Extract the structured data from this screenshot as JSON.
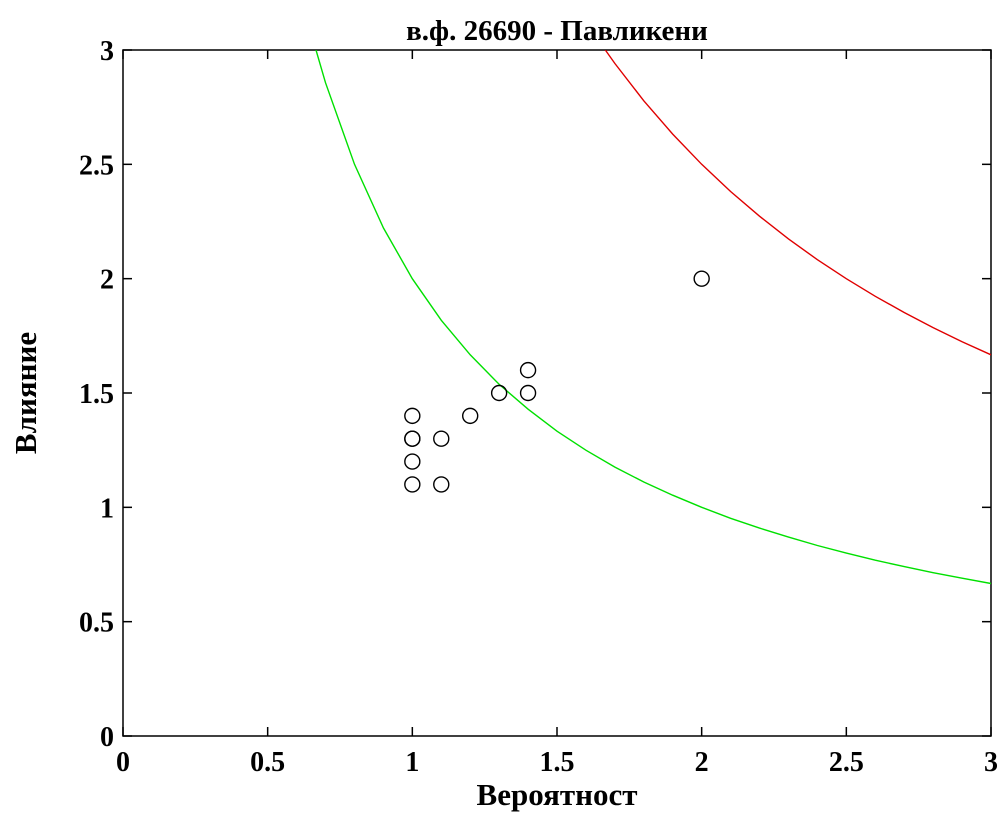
{
  "chart_data": {
    "type": "scatter",
    "title": "в.ф. 26690 - Павликени",
    "xlabel": "Вероятност",
    "ylabel": "Влияние",
    "xlim": [
      0,
      3
    ],
    "ylim": [
      0,
      3
    ],
    "grid": false,
    "xticks": [
      "0",
      "0.5",
      "1",
      "1.5",
      "2",
      "2.5",
      "3"
    ],
    "yticks": [
      "0",
      "0.5",
      "1",
      "1.5",
      "2",
      "2.5",
      "3"
    ],
    "points": {
      "marker": "open-circle",
      "color": "#000000",
      "x": [
        1.0,
        1.0,
        1.0,
        1.0,
        1.0,
        1.1,
        1.1,
        1.2,
        1.3,
        1.4,
        1.4,
        2.0
      ],
      "y": [
        1.1,
        1.2,
        1.3,
        1.3,
        1.4,
        1.1,
        1.3,
        1.4,
        1.5,
        1.5,
        1.6,
        2.0
      ]
    },
    "curves": [
      {
        "color": "#00e000",
        "x": [
          0.667,
          0.7,
          0.8,
          0.9,
          1.0,
          1.1,
          1.2,
          1.3,
          1.4,
          1.5,
          1.6,
          1.7,
          1.8,
          1.9,
          2.0,
          2.1,
          2.2,
          2.3,
          2.4,
          2.5,
          2.6,
          2.7,
          2.8,
          2.9,
          3.0
        ],
        "y": [
          3.0,
          2.857,
          2.5,
          2.222,
          2.0,
          1.818,
          1.667,
          1.538,
          1.429,
          1.333,
          1.25,
          1.176,
          1.111,
          1.053,
          1.0,
          0.952,
          0.909,
          0.87,
          0.833,
          0.8,
          0.769,
          0.741,
          0.714,
          0.69,
          0.667
        ]
      },
      {
        "color": "#e00000",
        "x": [
          1.667,
          1.7,
          1.8,
          1.9,
          2.0,
          2.1,
          2.2,
          2.3,
          2.4,
          2.5,
          2.6,
          2.7,
          2.8,
          2.9,
          3.0
        ],
        "y": [
          3.0,
          2.941,
          2.778,
          2.632,
          2.5,
          2.381,
          2.273,
          2.174,
          2.083,
          2.0,
          1.923,
          1.852,
          1.786,
          1.724,
          1.667
        ]
      }
    ]
  }
}
